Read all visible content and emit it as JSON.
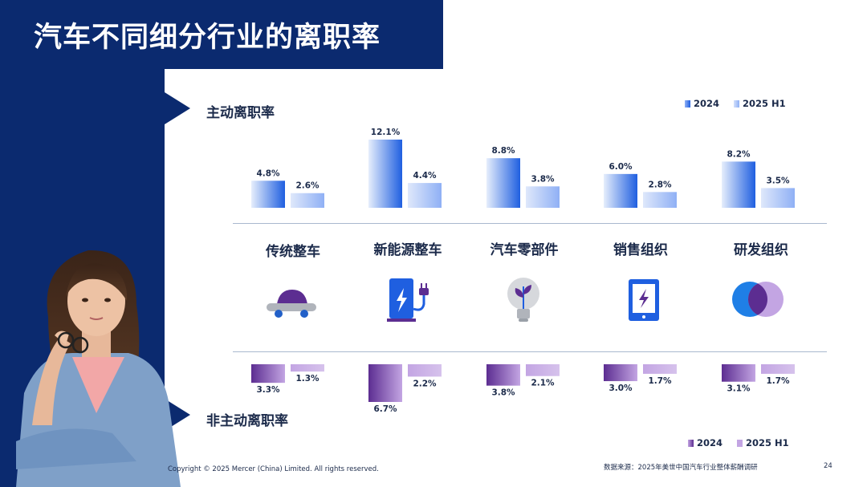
{
  "page": {
    "title": "汽车不同细分行业的离职率",
    "footer_copyright": "Copyright © 2025 Mercer (China) Limited. All rights reserved.",
    "footer_source": "数据来源：2025年美世中国汽车行业整体薪酬调研",
    "page_number": "24"
  },
  "categories": [
    {
      "label": "传统整车",
      "icon": "car-icon"
    },
    {
      "label": "新能源整车",
      "icon": "ev-charger-icon"
    },
    {
      "label": "汽车零部件",
      "icon": "lightbulb-leaf-icon"
    },
    {
      "label": "销售组织",
      "icon": "tablet-icon"
    },
    {
      "label": "研发组织",
      "icon": "venn-circles-icon"
    }
  ],
  "chart_data": [
    {
      "type": "bar",
      "title": "主动离职率",
      "categories": [
        "传统整车",
        "新能源整车",
        "汽车零部件",
        "销售组织",
        "研发组织"
      ],
      "series": [
        {
          "name": "2024",
          "values": [
            4.8,
            12.1,
            8.8,
            6.0,
            8.2
          ],
          "labels": [
            "4.8%",
            "12.1%",
            "8.8%",
            "6.0%",
            "8.2%"
          ],
          "color": "#1f5fe0"
        },
        {
          "name": "2025 H1",
          "values": [
            2.6,
            4.4,
            3.8,
            2.8,
            3.5
          ],
          "labels": [
            "2.6%",
            "4.4%",
            "3.8%",
            "2.8%",
            "3.5%"
          ],
          "color": "#8fb0f5"
        }
      ],
      "ylim": [
        0,
        12.1
      ],
      "legend_position": "top-right"
    },
    {
      "type": "bar",
      "title": "非主动离职率",
      "orientation": "downward",
      "categories": [
        "传统整车",
        "新能源整车",
        "汽车零部件",
        "销售组织",
        "研发组织"
      ],
      "series": [
        {
          "name": "2024",
          "values": [
            3.3,
            6.7,
            3.8,
            3.0,
            3.1
          ],
          "labels": [
            "3.3%",
            "6.7%",
            "3.8%",
            "3.0%",
            "3.1%"
          ],
          "color": "#5c2d91"
        },
        {
          "name": "2025 H1",
          "values": [
            1.3,
            2.2,
            2.1,
            1.7,
            1.7
          ],
          "labels": [
            "1.3%",
            "2.2%",
            "2.1%",
            "1.7%",
            "1.7%"
          ],
          "color": "#c3a5e3"
        }
      ],
      "ylim": [
        0,
        6.7
      ],
      "legend_position": "bottom-right"
    }
  ]
}
